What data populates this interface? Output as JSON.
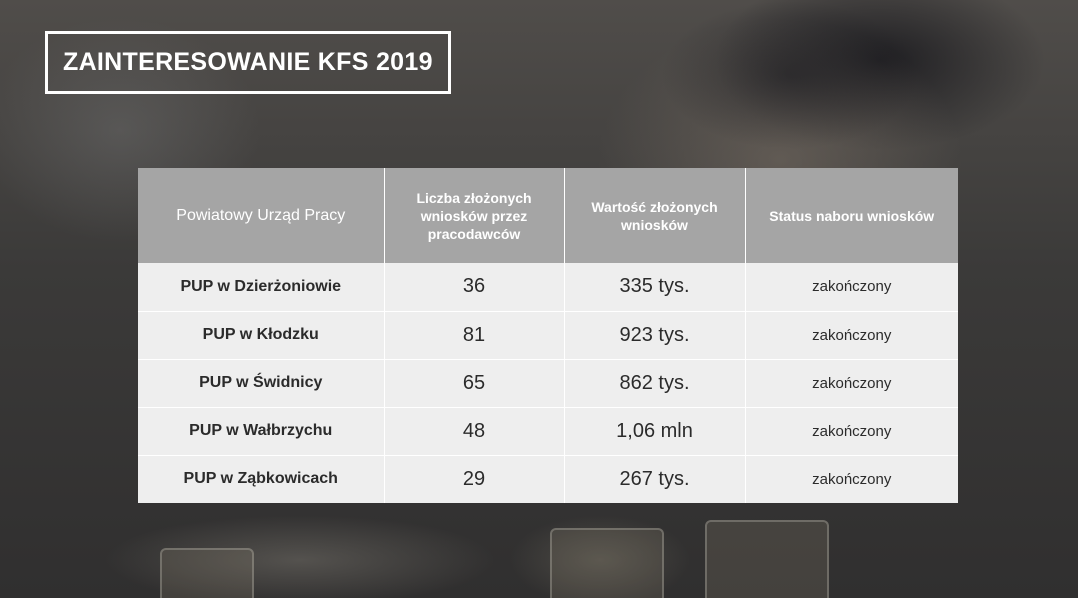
{
  "slide": {
    "title": "ZAINTERESOWANIE KFS 2019"
  },
  "table": {
    "headers": [
      "Powiatowy Urząd Pracy",
      "Liczba złożonych wniosków przez pracodawców",
      "Wartość złożonych wniosków",
      "Status naboru wniosków"
    ],
    "rows": [
      {
        "pup": "PUP w Dzierżoniowie",
        "count": "36",
        "value": "335 tys.",
        "status": "zakończony"
      },
      {
        "pup": "PUP w Kłodzku",
        "count": "81",
        "value": "923 tys.",
        "status": "zakończony"
      },
      {
        "pup": "PUP w Świdnicy",
        "count": "65",
        "value": "862 tys.",
        "status": "zakończony"
      },
      {
        "pup": "PUP w Wałbrzychu",
        "count": "48",
        "value": "1,06 mln",
        "status": "zakończony"
      },
      {
        "pup": "PUP w Ząbkowicach",
        "count": "29",
        "value": "267 tys.",
        "status": "zakończony"
      }
    ]
  },
  "colors": {
    "header_bg": "#a5a5a5",
    "cell_bg": "#eeeeee",
    "title_border": "#ffffff"
  }
}
